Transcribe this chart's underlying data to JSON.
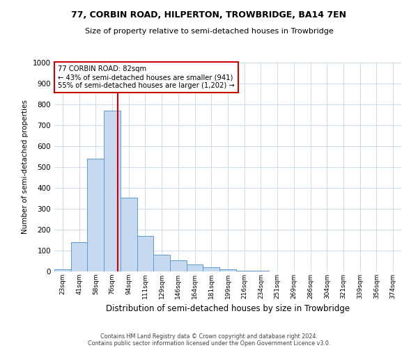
{
  "title1": "77, CORBIN ROAD, HILPERTON, TROWBRIDGE, BA14 7EN",
  "title2": "Size of property relative to semi-detached houses in Trowbridge",
  "xlabel": "Distribution of semi-detached houses by size in Trowbridge",
  "ylabel": "Number of semi-detached properties",
  "footer1": "Contains HM Land Registry data © Crown copyright and database right 2024.",
  "footer2": "Contains public sector information licensed under the Open Government Licence v3.0.",
  "x_labels": [
    "23sqm",
    "41sqm",
    "58sqm",
    "76sqm",
    "94sqm",
    "111sqm",
    "129sqm",
    "146sqm",
    "164sqm",
    "181sqm",
    "199sqm",
    "216sqm",
    "234sqm",
    "251sqm",
    "269sqm",
    "286sqm",
    "304sqm",
    "321sqm",
    "339sqm",
    "356sqm",
    "374sqm"
  ],
  "bar_values": [
    10,
    140,
    540,
    770,
    355,
    170,
    80,
    52,
    35,
    20,
    10,
    5,
    3,
    0,
    0,
    0,
    0,
    0,
    0,
    0,
    0
  ],
  "bar_color": "#c6d9f0",
  "bar_edge_color": "#5b9bd5",
  "grid_color": "#c8d8e8",
  "annotation_line1": "77 CORBIN ROAD: 82sqm",
  "annotation_line2": "← 43% of semi-detached houses are smaller (941)",
  "annotation_line3": "55% of semi-detached houses are larger (1,202) →",
  "red_line_x": 3.33,
  "annotation_box_color": "#ffffff",
  "annotation_box_edge": "#cc0000",
  "red_line_color": "#cc0000",
  "ylim": [
    0,
    1000
  ],
  "yticks": [
    0,
    100,
    200,
    300,
    400,
    500,
    600,
    700,
    800,
    900,
    1000
  ],
  "background_color": "#ffffff"
}
